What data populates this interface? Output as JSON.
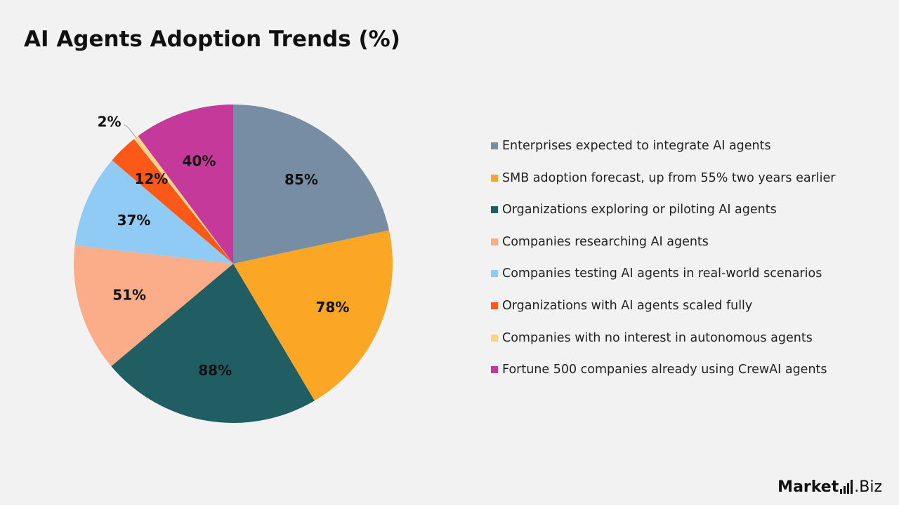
{
  "title": "AI Agents Adoption Trends (%)",
  "chart_data": {
    "type": "pie",
    "title": "AI Agents Adoption Trends (%)",
    "legend_position": "right",
    "slices": [
      {
        "label": "Enterprises expected to integrate AI agents",
        "value": 85,
        "display": "85%",
        "color": "#778da3"
      },
      {
        "label": "SMB adoption forecast, up from 55% two years earlier",
        "value": 78,
        "display": "78%",
        "color": "#fba725"
      },
      {
        "label": "Organizations exploring or piloting AI agents",
        "value": 88,
        "display": "88%",
        "color": "#205e63"
      },
      {
        "label": "Companies researching AI agents",
        "value": 51,
        "display": "51%",
        "color": "#fbac89"
      },
      {
        "label": "Companies testing AI agents in real-world scenarios",
        "value": 37,
        "display": "37%",
        "color": "#8fcbf4"
      },
      {
        "label": "Organizations with AI agents scaled fully",
        "value": 12,
        "display": "12%",
        "color": "#fc5817"
      },
      {
        "label": "Companies with no interest in autonomous agents",
        "value": 2,
        "display": "2%",
        "color": "#fdd38c"
      },
      {
        "label": "Fortune 500 companies already using CrewAI agents",
        "value": 40,
        "display": "40%",
        "color": "#c5399a"
      }
    ]
  },
  "brand": {
    "name_main": "Market",
    "name_suffix": ".Biz"
  }
}
